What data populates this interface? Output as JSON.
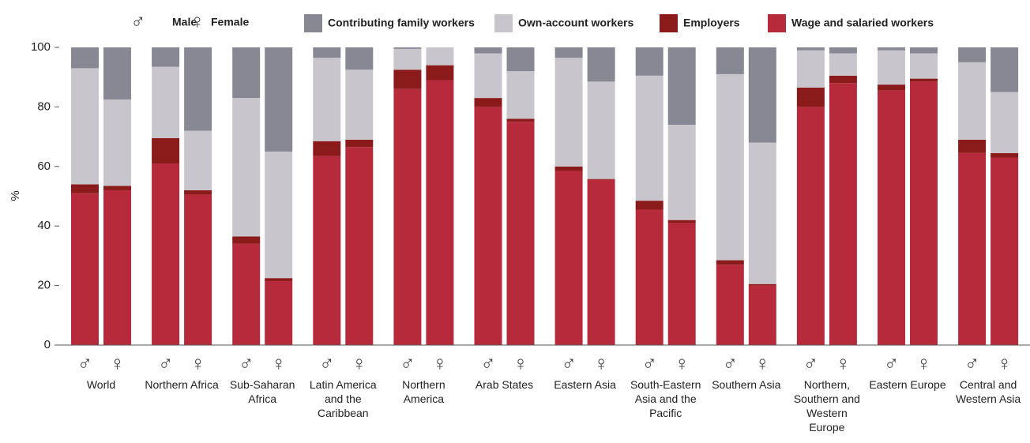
{
  "chart_data": {
    "type": "bar",
    "stacked": true,
    "y_label": "%",
    "ylim": [
      0,
      100
    ],
    "yticks": [
      0,
      20,
      40,
      60,
      80,
      100
    ],
    "sexes": [
      {
        "symbol": "♂",
        "name": "Male"
      },
      {
        "symbol": "♀",
        "name": "Female"
      }
    ],
    "categories": [
      "World",
      "Northern Africa",
      "Sub-Saharan Africa",
      "Latin America and the Caribbean",
      "Northern America",
      "Arab States",
      "Eastern Asia",
      "South-Eastern Asia and the Pacific",
      "Southern Asia",
      "Northern, Southern and Western Europe",
      "Eastern Europe",
      "Central and Western Asia"
    ],
    "series": [
      {
        "name": "Wage and salaried workers",
        "color": "#b72a3c",
        "values": [
          [
            51,
            52
          ],
          [
            61,
            50.5
          ],
          [
            34,
            21.5
          ],
          [
            63.5,
            66.5
          ],
          [
            86,
            89
          ],
          [
            80,
            75
          ],
          [
            58.5,
            55.5
          ],
          [
            45.5,
            41
          ],
          [
            27,
            20
          ],
          [
            80,
            88
          ],
          [
            85.5,
            88.5
          ],
          [
            64.5,
            63
          ]
        ]
      },
      {
        "name": "Employers",
        "color": "#8b1a1a",
        "values": [
          [
            3,
            1.5
          ],
          [
            8.5,
            1.5
          ],
          [
            2.5,
            1
          ],
          [
            5,
            2.5
          ],
          [
            6.5,
            5
          ],
          [
            3,
            1
          ],
          [
            1.5,
            0.3
          ],
          [
            3,
            1
          ],
          [
            1.5,
            0.5
          ],
          [
            6.5,
            2.5
          ],
          [
            2,
            1
          ],
          [
            4.5,
            1.5
          ]
        ]
      },
      {
        "name": "Own-account workers",
        "color": "#c8c6cc",
        "values": [
          [
            39,
            29
          ],
          [
            24,
            20
          ],
          [
            46.5,
            42.5
          ],
          [
            28,
            23.5
          ],
          [
            7,
            6
          ],
          [
            15,
            16
          ],
          [
            36.5,
            32.7
          ],
          [
            42,
            32
          ],
          [
            62.5,
            47.5
          ],
          [
            12.5,
            7.5
          ],
          [
            11.5,
            8.5
          ],
          [
            26,
            20.5
          ]
        ]
      },
      {
        "name": "Contributing family workers",
        "color": "#878894",
        "values": [
          [
            7,
            17.5
          ],
          [
            6.5,
            28
          ],
          [
            17,
            35
          ],
          [
            3.5,
            7.5
          ],
          [
            0.5,
            0
          ],
          [
            2,
            8
          ],
          [
            3.5,
            11.5
          ],
          [
            9.5,
            26
          ],
          [
            9,
            32
          ],
          [
            1,
            2
          ],
          [
            1,
            2
          ],
          [
            5,
            15
          ]
        ]
      }
    ]
  }
}
